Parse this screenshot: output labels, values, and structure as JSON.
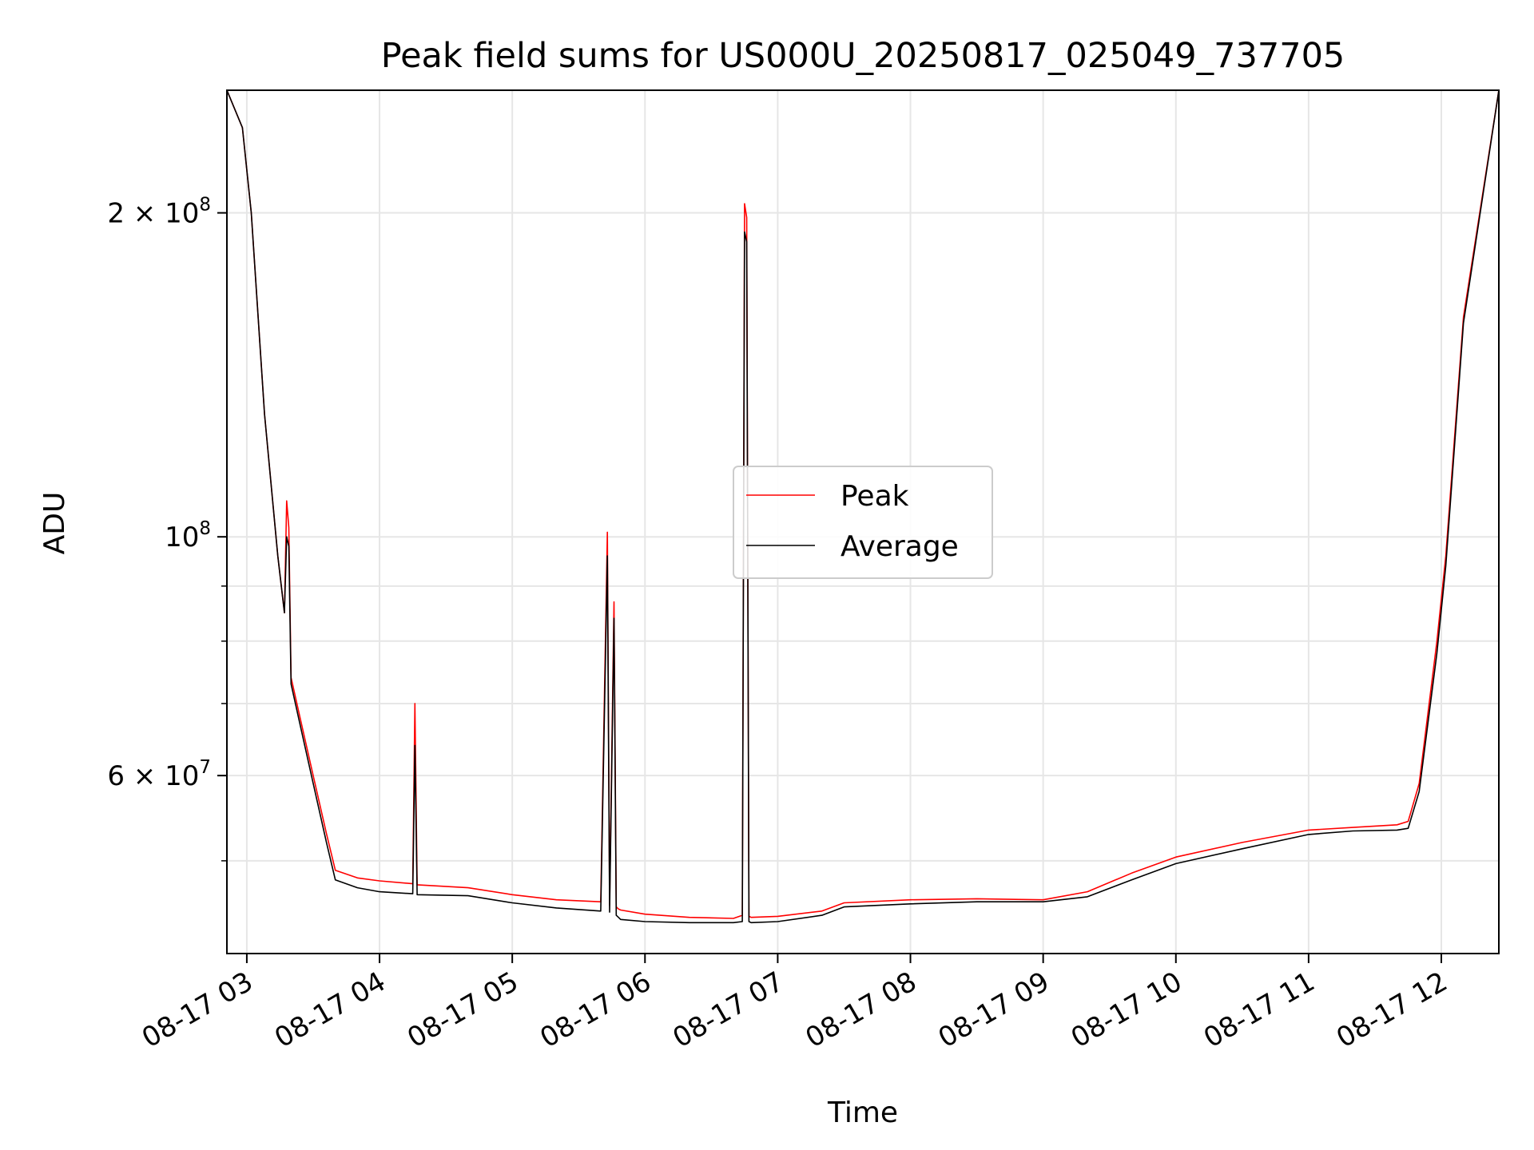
{
  "chart_data": {
    "type": "line",
    "title": "Peak field sums for US000U_20250817_025049_737705",
    "xlabel": "Time",
    "ylabel": "ADU",
    "yscale": "log",
    "xlim": [
      "2025-08-17 02:51",
      "2025-08-17 12:26"
    ],
    "ylim": [
      41000000,
      260000000
    ],
    "xticks": [
      {
        "value": "2025-08-17 03:00",
        "label": "08-17 03"
      },
      {
        "value": "2025-08-17 04:00",
        "label": "08-17 04"
      },
      {
        "value": "2025-08-17 05:00",
        "label": "08-17 05"
      },
      {
        "value": "2025-08-17 06:00",
        "label": "08-17 06"
      },
      {
        "value": "2025-08-17 07:00",
        "label": "08-17 07"
      },
      {
        "value": "2025-08-17 08:00",
        "label": "08-17 08"
      },
      {
        "value": "2025-08-17 09:00",
        "label": "08-17 09"
      },
      {
        "value": "2025-08-17 10:00",
        "label": "08-17 10"
      },
      {
        "value": "2025-08-17 11:00",
        "label": "08-17 11"
      },
      {
        "value": "2025-08-17 12:00",
        "label": "08-17 12"
      }
    ],
    "yticks_major": [
      {
        "value": 200000000,
        "base": "2 × 10",
        "exp": "8"
      },
      {
        "value": 100000000,
        "base": "10",
        "exp": "8"
      },
      {
        "value": 60000000,
        "base": "6 × 10",
        "exp": "7"
      }
    ],
    "yticks_minor": [
      50000000,
      70000000,
      80000000,
      90000000,
      300000000
    ],
    "grid": true,
    "legend_position": "center",
    "series": [
      {
        "name": "Peak",
        "color": "#ff0000",
        "x": [
          "2025-08-17 02:51",
          "2025-08-17 02:58",
          "2025-08-17 03:02",
          "2025-08-17 03:08",
          "2025-08-17 03:14",
          "2025-08-17 03:17",
          "2025-08-17 03:18",
          "2025-08-17 03:19",
          "2025-08-17 03:20",
          "2025-08-17 03:24",
          "2025-08-17 03:30",
          "2025-08-17 03:36",
          "2025-08-17 03:40",
          "2025-08-17 03:50",
          "2025-08-17 04:00",
          "2025-08-17 04:15",
          "2025-08-17 04:16",
          "2025-08-17 04:17",
          "2025-08-17 04:40",
          "2025-08-17 05:00",
          "2025-08-17 05:20",
          "2025-08-17 05:40",
          "2025-08-17 05:43",
          "2025-08-17 05:44",
          "2025-08-17 05:46",
          "2025-08-17 05:47",
          "2025-08-17 05:48",
          "2025-08-17 05:49",
          "2025-08-17 06:00",
          "2025-08-17 06:20",
          "2025-08-17 06:40",
          "2025-08-17 06:44",
          "2025-08-17 06:45",
          "2025-08-17 06:46",
          "2025-08-17 06:47",
          "2025-08-17 06:48",
          "2025-08-17 07:00",
          "2025-08-17 07:20",
          "2025-08-17 07:30",
          "2025-08-17 08:00",
          "2025-08-17 08:30",
          "2025-08-17 09:00",
          "2025-08-17 09:20",
          "2025-08-17 09:40",
          "2025-08-17 10:00",
          "2025-08-17 10:30",
          "2025-08-17 11:00",
          "2025-08-17 11:20",
          "2025-08-17 11:40",
          "2025-08-17 11:45",
          "2025-08-17 11:50",
          "2025-08-17 11:58",
          "2025-08-17 12:02",
          "2025-08-17 12:10",
          "2025-08-17 12:26"
        ],
        "values": [
          260000000,
          240000000,
          200000000,
          130000000,
          96000000,
          85000000,
          108000000,
          102000000,
          74000000,
          68000000,
          60000000,
          53000000,
          49000000,
          48200000,
          47900000,
          47600000,
          70000000,
          47500000,
          47200000,
          46500000,
          46000000,
          45800000,
          101000000,
          45500000,
          87000000,
          45300000,
          45100000,
          45000000,
          44600000,
          44300000,
          44200000,
          44500000,
          204000000,
          198000000,
          44400000,
          44300000,
          44400000,
          44900000,
          45700000,
          46000000,
          46100000,
          46000000,
          46800000,
          48700000,
          50400000,
          52000000,
          53400000,
          53700000,
          54000000,
          54400000,
          59000000,
          80000000,
          96000000,
          160000000,
          260000000
        ]
      },
      {
        "name": "Average",
        "color": "#000000",
        "x": [
          "2025-08-17 02:51",
          "2025-08-17 02:58",
          "2025-08-17 03:02",
          "2025-08-17 03:08",
          "2025-08-17 03:14",
          "2025-08-17 03:17",
          "2025-08-17 03:18",
          "2025-08-17 03:19",
          "2025-08-17 03:20",
          "2025-08-17 03:24",
          "2025-08-17 03:30",
          "2025-08-17 03:36",
          "2025-08-17 03:40",
          "2025-08-17 03:50",
          "2025-08-17 04:00",
          "2025-08-17 04:15",
          "2025-08-17 04:16",
          "2025-08-17 04:17",
          "2025-08-17 04:40",
          "2025-08-17 05:00",
          "2025-08-17 05:20",
          "2025-08-17 05:40",
          "2025-08-17 05:43",
          "2025-08-17 05:44",
          "2025-08-17 05:46",
          "2025-08-17 05:47",
          "2025-08-17 05:48",
          "2025-08-17 05:49",
          "2025-08-17 06:00",
          "2025-08-17 06:20",
          "2025-08-17 06:40",
          "2025-08-17 06:44",
          "2025-08-17 06:45",
          "2025-08-17 06:46",
          "2025-08-17 06:47",
          "2025-08-17 06:48",
          "2025-08-17 07:00",
          "2025-08-17 07:20",
          "2025-08-17 07:30",
          "2025-08-17 08:00",
          "2025-08-17 08:30",
          "2025-08-17 09:00",
          "2025-08-17 09:20",
          "2025-08-17 09:40",
          "2025-08-17 10:00",
          "2025-08-17 10:30",
          "2025-08-17 11:00",
          "2025-08-17 11:20",
          "2025-08-17 11:40",
          "2025-08-17 11:45",
          "2025-08-17 11:50",
          "2025-08-17 11:58",
          "2025-08-17 12:02",
          "2025-08-17 12:10",
          "2025-08-17 12:26"
        ],
        "values": [
          260000000,
          240000000,
          200000000,
          130000000,
          96000000,
          85000000,
          100000000,
          98000000,
          73000000,
          67000000,
          59000000,
          52000000,
          48000000,
          47200000,
          46800000,
          46600000,
          64000000,
          46500000,
          46400000,
          45700000,
          45200000,
          44900000,
          96000000,
          44800000,
          84000000,
          44500000,
          44300000,
          44100000,
          43900000,
          43800000,
          43800000,
          43900000,
          192000000,
          188000000,
          43900000,
          43800000,
          43900000,
          44500000,
          45300000,
          45600000,
          45800000,
          45800000,
          46300000,
          48000000,
          49700000,
          51300000,
          52900000,
          53300000,
          53400000,
          53600000,
          58000000,
          78000000,
          94000000,
          158000000,
          260000000
        ]
      }
    ]
  }
}
